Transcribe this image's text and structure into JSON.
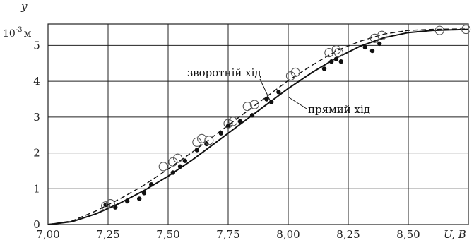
{
  "chart_data": {
    "type": "scatter",
    "xlabel": "U, В",
    "ylabel": "y",
    "yunit_prefix": "10",
    "yunit_exp": "-3",
    "yunit_suffix": "м",
    "xlim": [
      7.0,
      8.75
    ],
    "ylim": [
      0,
      5.6
    ],
    "grid": true,
    "x_ticks": [
      7.0,
      7.25,
      7.5,
      7.75,
      8.0,
      8.25,
      8.5
    ],
    "x_tick_labels": [
      "7,00",
      "7,25",
      "7,50",
      "7,75",
      "8,00",
      "8,25",
      "8,50"
    ],
    "y_ticks": [
      0,
      1,
      2,
      3,
      4,
      5
    ],
    "y_tick_labels": [
      "0",
      "1",
      "2",
      "3",
      "4",
      "5"
    ],
    "annotations": [
      {
        "text": "зворотній хід",
        "series": "reverse"
      },
      {
        "text": "прямий хід",
        "series": "forward"
      }
    ],
    "series": [
      {
        "key": "forward",
        "name": "прямий хід",
        "style": "solid-line",
        "x": [
          7.0,
          7.1,
          7.2,
          7.3,
          7.4,
          7.5,
          7.6,
          7.7,
          7.8,
          7.9,
          8.0,
          8.1,
          8.2,
          8.3,
          8.4,
          8.5,
          8.6,
          8.7,
          8.75
        ],
        "y": [
          0.0,
          0.08,
          0.3,
          0.6,
          0.95,
          1.35,
          1.8,
          2.3,
          2.8,
          3.3,
          3.8,
          4.25,
          4.65,
          4.98,
          5.22,
          5.36,
          5.42,
          5.44,
          5.45
        ]
      },
      {
        "key": "reverse",
        "name": "зворотній хід",
        "style": "dashed-line",
        "x": [
          7.0,
          7.1,
          7.2,
          7.3,
          7.4,
          7.5,
          7.6,
          7.7,
          7.8,
          7.9,
          8.0,
          8.1,
          8.2,
          8.3,
          8.4,
          8.5,
          8.6,
          8.7,
          8.75
        ],
        "y": [
          0.0,
          0.1,
          0.38,
          0.72,
          1.1,
          1.55,
          2.02,
          2.52,
          3.02,
          3.52,
          4.02,
          4.45,
          4.85,
          5.12,
          5.32,
          5.42,
          5.45,
          5.46,
          5.46
        ]
      },
      {
        "key": "forward_points",
        "style": "filled-dots",
        "x": [
          7.24,
          7.28,
          7.33,
          7.38,
          7.4,
          7.43,
          7.52,
          7.55,
          7.57,
          7.62,
          7.66,
          7.72,
          7.75,
          7.8,
          7.85,
          7.91,
          7.93,
          7.96,
          8.15,
          8.18,
          8.2,
          8.22,
          8.32,
          8.35,
          8.38
        ],
        "y": [
          0.55,
          0.48,
          0.65,
          0.72,
          0.88,
          1.12,
          1.45,
          1.62,
          1.78,
          2.08,
          2.25,
          2.55,
          2.75,
          2.88,
          3.05,
          3.5,
          3.42,
          3.7,
          4.35,
          4.55,
          4.62,
          4.55,
          4.95,
          4.85,
          5.05
        ]
      },
      {
        "key": "reverse_points",
        "style": "open-circles",
        "x": [
          7.24,
          7.26,
          7.48,
          7.52,
          7.54,
          7.62,
          7.64,
          7.67,
          7.75,
          7.77,
          7.83,
          7.86,
          8.01,
          8.03,
          8.17,
          8.2,
          8.21,
          8.36,
          8.39,
          8.63,
          8.74
        ],
        "y": [
          0.52,
          0.58,
          1.62,
          1.75,
          1.85,
          2.3,
          2.4,
          2.35,
          2.82,
          2.88,
          3.3,
          3.35,
          4.15,
          4.25,
          4.8,
          4.88,
          4.8,
          5.2,
          5.28,
          5.42,
          5.45
        ]
      }
    ]
  }
}
